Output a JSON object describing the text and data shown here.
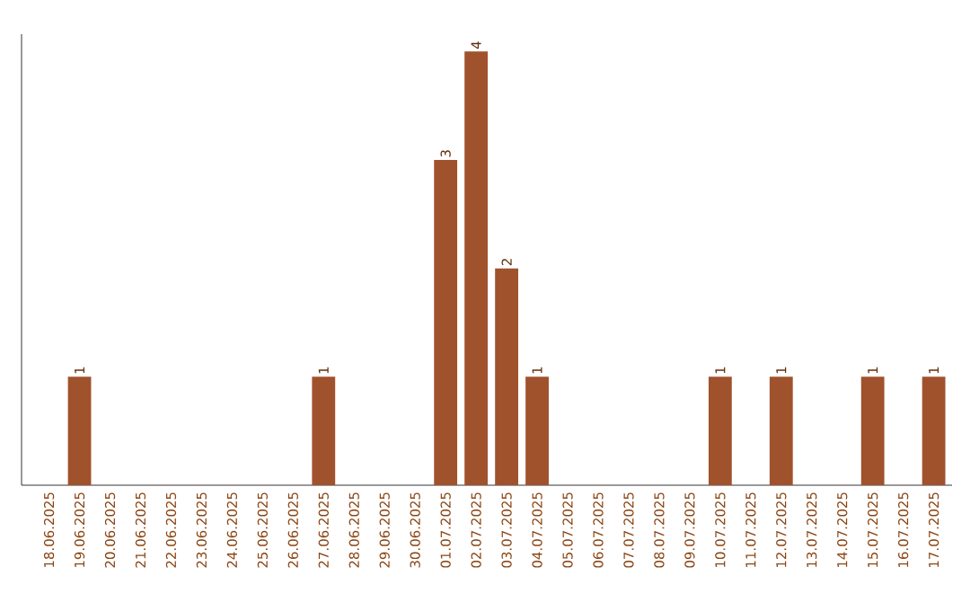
{
  "chart_data": {
    "type": "bar",
    "color": "#a0522d",
    "categories": [
      "18.06.2025",
      "19.06.2025",
      "20.06.2025",
      "21.06.2025",
      "22.06.2025",
      "23.06.2025",
      "24.06.2025",
      "25.06.2025",
      "26.06.2025",
      "27.06.2025",
      "28.06.2025",
      "29.06.2025",
      "30.06.2025",
      "01.07.2025",
      "02.07.2025",
      "03.07.2025",
      "04.07.2025",
      "05.07.2025",
      "06.07.2025",
      "07.07.2025",
      "08.07.2025",
      "09.07.2025",
      "10.07.2025",
      "11.07.2025",
      "12.07.2025",
      "13.07.2025",
      "14.07.2025",
      "15.07.2025",
      "16.07.2025",
      "17.07.2025"
    ],
    "values": [
      0,
      1,
      0,
      0,
      0,
      0,
      0,
      0,
      0,
      1,
      0,
      0,
      0,
      3,
      4,
      2,
      1,
      0,
      0,
      0,
      0,
      0,
      1,
      0,
      1,
      0,
      0,
      1,
      0,
      1
    ],
    "value_labels": [
      null,
      "1",
      null,
      null,
      null,
      null,
      null,
      null,
      null,
      "1",
      null,
      null,
      null,
      "3",
      "4",
      "2",
      "1",
      null,
      null,
      null,
      null,
      null,
      "1",
      null,
      "1",
      null,
      null,
      "1",
      null,
      "1"
    ],
    "tick_labels": "x",
    "grid": false
  }
}
